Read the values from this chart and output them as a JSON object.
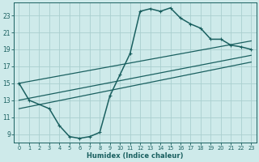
{
  "xlabel": "Humidex (Indice chaleur)",
  "bg_color": "#ceeaea",
  "line_color": "#1a6060",
  "grid_color": "#aacfcf",
  "xlim": [
    -0.5,
    23.5
  ],
  "ylim": [
    8.0,
    24.5
  ],
  "x_ticks": [
    0,
    1,
    2,
    3,
    4,
    5,
    6,
    7,
    8,
    9,
    10,
    11,
    12,
    13,
    14,
    15,
    16,
    17,
    18,
    19,
    20,
    21,
    22,
    23
  ],
  "y_ticks": [
    9,
    11,
    13,
    15,
    17,
    19,
    21,
    23
  ],
  "main_curve_x": [
    0,
    1,
    3,
    4,
    5,
    6,
    7,
    8,
    9,
    10,
    11,
    12,
    13,
    14,
    15,
    16,
    17,
    18,
    19,
    20,
    21,
    22,
    23
  ],
  "main_curve_y": [
    15.0,
    13.0,
    12.0,
    10.0,
    8.7,
    8.5,
    8.7,
    9.2,
    13.5,
    16.0,
    18.5,
    23.5,
    23.8,
    23.5,
    23.9,
    22.7,
    22.0,
    21.5,
    20.2,
    20.2,
    19.5,
    19.3,
    19.0
  ],
  "line1_x": [
    0,
    23
  ],
  "line1_y": [
    15.0,
    20.0
  ],
  "line2_x": [
    0,
    23
  ],
  "line2_y": [
    13.0,
    18.3
  ],
  "line3_x": [
    0,
    23
  ],
  "line3_y": [
    12.0,
    17.5
  ]
}
